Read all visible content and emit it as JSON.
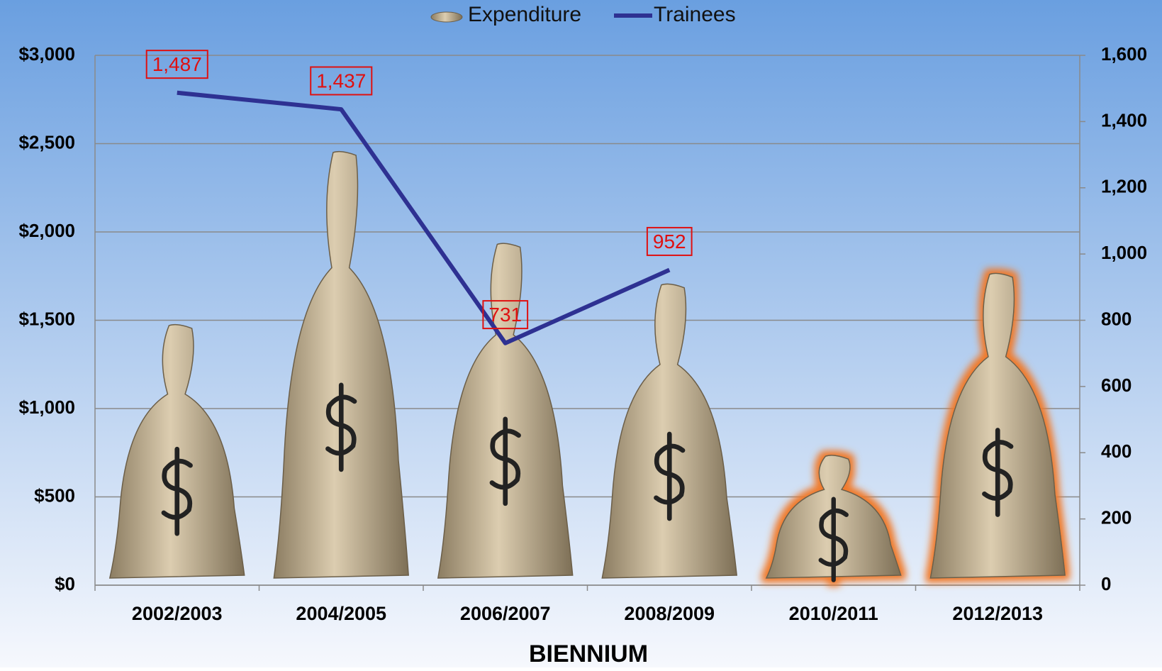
{
  "chart_data": {
    "type": "bar-line",
    "x_label": "BIENNIUM",
    "categories": [
      "2002/2003",
      "2004/2005",
      "2006/2007",
      "2008/2009",
      "2010/2011",
      "2012/2013"
    ],
    "series": [
      {
        "name": "Expenditure",
        "type": "bar",
        "color": "#c9b89a",
        "values": [
          1470,
          2450,
          1930,
          1700,
          730,
          1760
        ],
        "highlighted": [
          false,
          false,
          false,
          false,
          true,
          true
        ]
      },
      {
        "name": "Trainees",
        "type": "line",
        "axis": "y2",
        "color": "#2e3192",
        "values": [
          1487,
          1437,
          731,
          952,
          null,
          null
        ],
        "value_labels": [
          "1,487",
          "1,437",
          "731",
          "952",
          null,
          null
        ]
      }
    ],
    "ylim": [
      0,
      3000
    ],
    "yticks": [
      {
        "value": 0,
        "label": "$0"
      },
      {
        "value": 500,
        "label": "$500"
      },
      {
        "value": 1000,
        "label": "$1,000"
      },
      {
        "value": 1500,
        "label": "$1,500"
      },
      {
        "value": 2000,
        "label": "$2,000"
      },
      {
        "value": 2500,
        "label": "$2,500"
      },
      {
        "value": 3000,
        "label": "$3,000"
      }
    ],
    "y2lim": [
      0,
      1600
    ],
    "y2ticks": [
      0,
      200,
      400,
      600,
      800,
      {
        "value": 1000,
        "label": "1,000"
      },
      {
        "value": 1200,
        "label": "1,200"
      },
      {
        "value": 1400,
        "label": "1,400"
      },
      {
        "value": 1600,
        "label": "1,600"
      }
    ],
    "grid": true,
    "legend": "top"
  }
}
